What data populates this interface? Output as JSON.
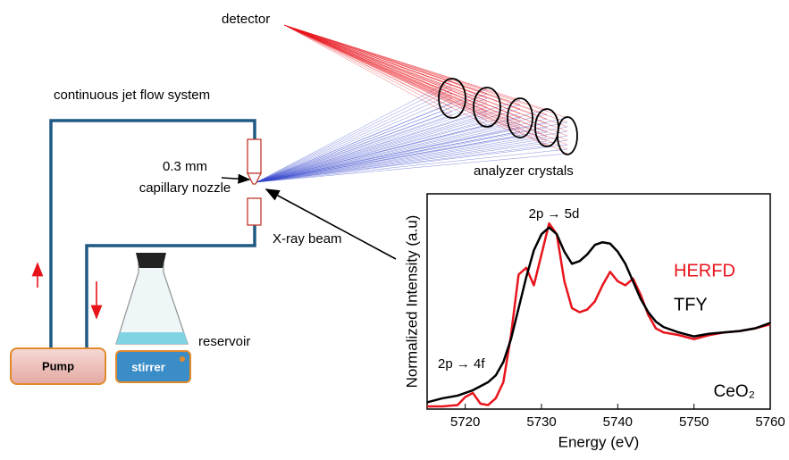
{
  "diagram": {
    "detector": "detector",
    "system": "continuous jet flow system",
    "nozzle_size": "0.3 mm",
    "nozzle": "capillary nozzle",
    "analyzer": "analyzer crystals",
    "beam": "X-ray beam",
    "pump": "Pump",
    "stirrer": "stirrer",
    "reservoir": "reservoir"
  },
  "chart_data": {
    "type": "line",
    "xlabel": "Energy (eV)",
    "ylabel": "Normalized Intensity (a.u)",
    "annotations": [
      "2p → 5d",
      "2p → 4f",
      "CeO₂"
    ],
    "x": [
      5715,
      5717,
      5719,
      5720,
      5721,
      5722,
      5723,
      5724,
      5725,
      5726,
      5727,
      5728,
      5729,
      5730,
      5731,
      5732,
      5733,
      5734,
      5735,
      5736,
      5737,
      5738,
      5739,
      5740,
      5741,
      5742,
      5743,
      5744,
      5745,
      5746,
      5748,
      5750,
      5752,
      5754,
      5756,
      5758,
      5760
    ],
    "series": [
      {
        "name": "HERFD",
        "color": "#e8141c",
        "values": [
          0.02,
          0.02,
          0.03,
          0.09,
          0.12,
          0.04,
          0.03,
          0.08,
          0.2,
          0.55,
          1.0,
          1.05,
          0.92,
          1.15,
          1.38,
          1.3,
          0.95,
          0.75,
          0.72,
          0.74,
          0.8,
          0.92,
          1.02,
          0.95,
          0.92,
          0.97,
          0.85,
          0.7,
          0.6,
          0.57,
          0.55,
          0.52,
          0.55,
          0.57,
          0.58,
          0.6,
          0.63
        ]
      },
      {
        "name": "TFY",
        "color": "#000000",
        "values": [
          0.05,
          0.08,
          0.1,
          0.12,
          0.14,
          0.17,
          0.2,
          0.25,
          0.35,
          0.52,
          0.75,
          0.98,
          1.18,
          1.3,
          1.35,
          1.3,
          1.17,
          1.08,
          1.1,
          1.15,
          1.22,
          1.24,
          1.23,
          1.17,
          1.08,
          0.95,
          0.82,
          0.72,
          0.65,
          0.61,
          0.57,
          0.54,
          0.56,
          0.57,
          0.58,
          0.6,
          0.64
        ]
      }
    ],
    "xlim": [
      5715,
      5760
    ],
    "xticks": [
      5720,
      5730,
      5740,
      5750,
      5760
    ],
    "ylim": [
      0,
      1.6
    ]
  }
}
